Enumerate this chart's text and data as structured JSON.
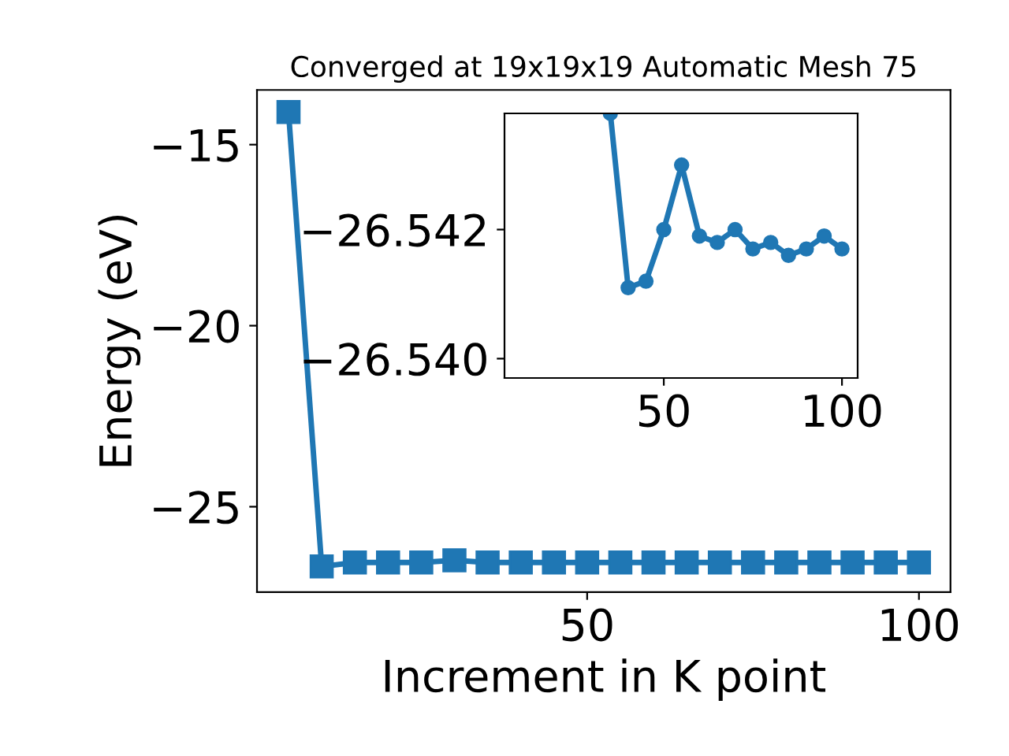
{
  "chart_data": [
    {
      "type": "line",
      "title": "Converged at 19x19x19 Automatic Mesh 75",
      "xlabel": "Increment in K point",
      "ylabel": "Energy (eV)",
      "marker": "square",
      "line_style": "solid",
      "grid": false,
      "legend": false,
      "x": [
        5,
        10,
        15,
        20,
        25,
        30,
        35,
        40,
        45,
        50,
        55,
        60,
        65,
        70,
        75,
        80,
        85,
        90,
        95,
        100
      ],
      "series": [
        {
          "color": "#1f77b4",
          "values": [
            -14.1,
            -26.65,
            -26.54,
            -26.54,
            -26.54,
            -26.48,
            -26.54,
            -26.54,
            -26.54,
            -26.54,
            -26.54,
            -26.54,
            -26.54,
            -26.54,
            -26.54,
            -26.54,
            -26.54,
            -26.54,
            -26.54,
            -26.54
          ]
        }
      ],
      "xlim": [
        0.25,
        104.75
      ],
      "ylim": [
        -27.36,
        -13.49
      ],
      "xticks": [
        50,
        100
      ],
      "yticks": [
        {
          "value": -15,
          "label": "−15"
        },
        {
          "value": -20,
          "label": "−20"
        },
        {
          "value": -25,
          "label": "−25"
        }
      ]
    },
    {
      "type": "line",
      "marker": "circle",
      "line_style": "solid",
      "grid": false,
      "legend": false,
      "x": [
        35,
        40,
        45,
        50,
        55,
        60,
        65,
        70,
        75,
        80,
        85,
        90,
        95,
        100
      ],
      "series": [
        {
          "color": "#1f77b4",
          "values": [
            -26.5438,
            -26.5411,
            -26.5412,
            -26.542,
            -26.543,
            -26.5419,
            -26.5418,
            -26.542,
            -26.5417,
            -26.5418,
            -26.5416,
            -26.5417,
            -26.5419,
            -26.5417
          ]
        }
      ],
      "xlim": [
        5.3,
        104.4
      ],
      "ylim": [
        -26.5397,
        -26.5438
      ],
      "xticks": [
        50,
        100
      ],
      "yticks": [
        {
          "value": -26.542,
          "label": "−26.542"
        },
        {
          "value": -26.54,
          "label": "−26.540"
        }
      ]
    }
  ]
}
